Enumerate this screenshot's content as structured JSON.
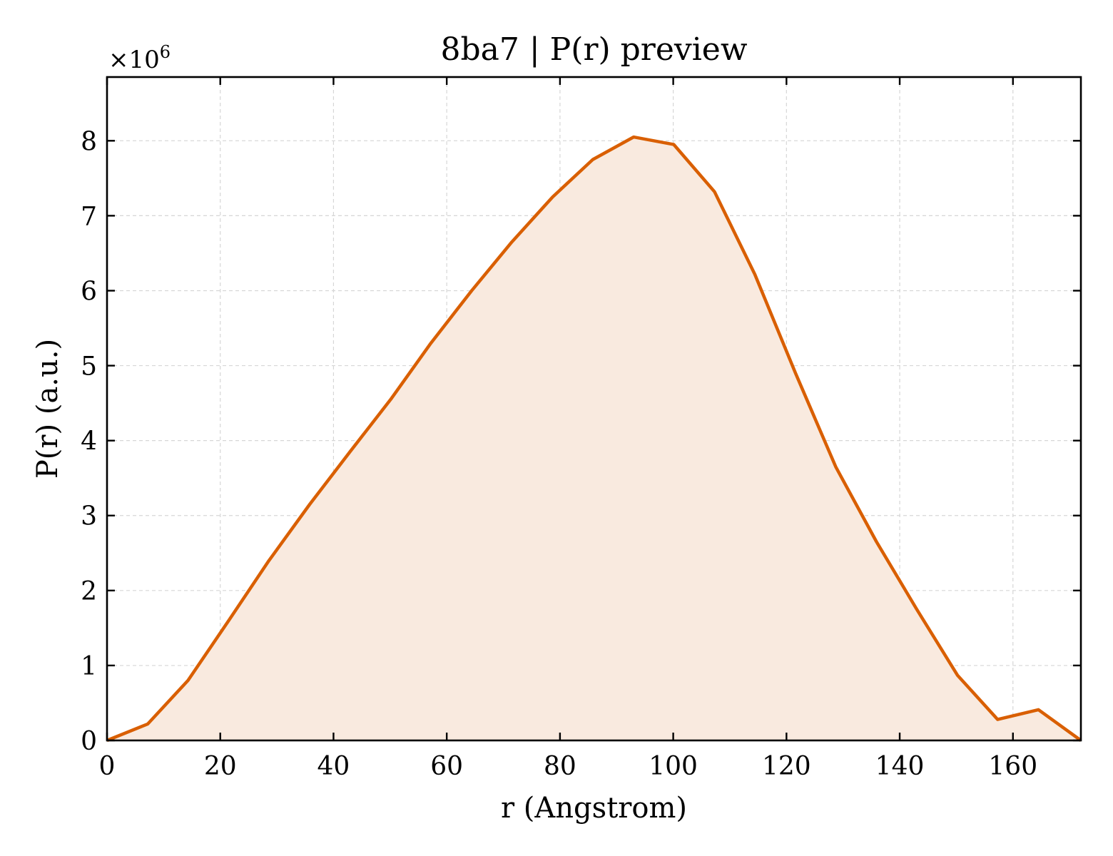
{
  "chart_data": {
    "type": "area",
    "title": "8ba7 | P(r) preview",
    "xlabel": "r (Angstrom)",
    "ylabel": "P(r) (a.u.)",
    "y_multiplier_base": "×10",
    "y_multiplier_exp": "6",
    "xlim": [
      0,
      172
    ],
    "ylim": [
      0,
      8.85
    ],
    "x_ticks": [
      0,
      20,
      40,
      60,
      80,
      100,
      120,
      140,
      160
    ],
    "y_ticks": [
      0,
      1,
      2,
      3,
      4,
      5,
      6,
      7,
      8
    ],
    "grid": true,
    "line_color": "#d95f02",
    "fill_color": "#f9eadf",
    "series": [
      {
        "x": [
          0,
          7.2,
          14.3,
          21.5,
          28.6,
          35.8,
          42.9,
          50.1,
          57.2,
          64.4,
          71.5,
          78.7,
          85.8,
          93.0,
          100.1,
          107.3,
          114.4,
          121.6,
          128.7,
          135.9,
          143.0,
          150.2,
          157.3,
          164.5,
          172.0
        ],
        "y": [
          0.0,
          0.22,
          0.8,
          1.6,
          2.4,
          3.15,
          3.85,
          4.55,
          5.3,
          6.0,
          6.65,
          7.25,
          7.75,
          8.05,
          7.95,
          7.32,
          6.22,
          4.9,
          3.65,
          2.65,
          1.75,
          0.87,
          0.28,
          0.41,
          0.0
        ]
      }
    ]
  }
}
